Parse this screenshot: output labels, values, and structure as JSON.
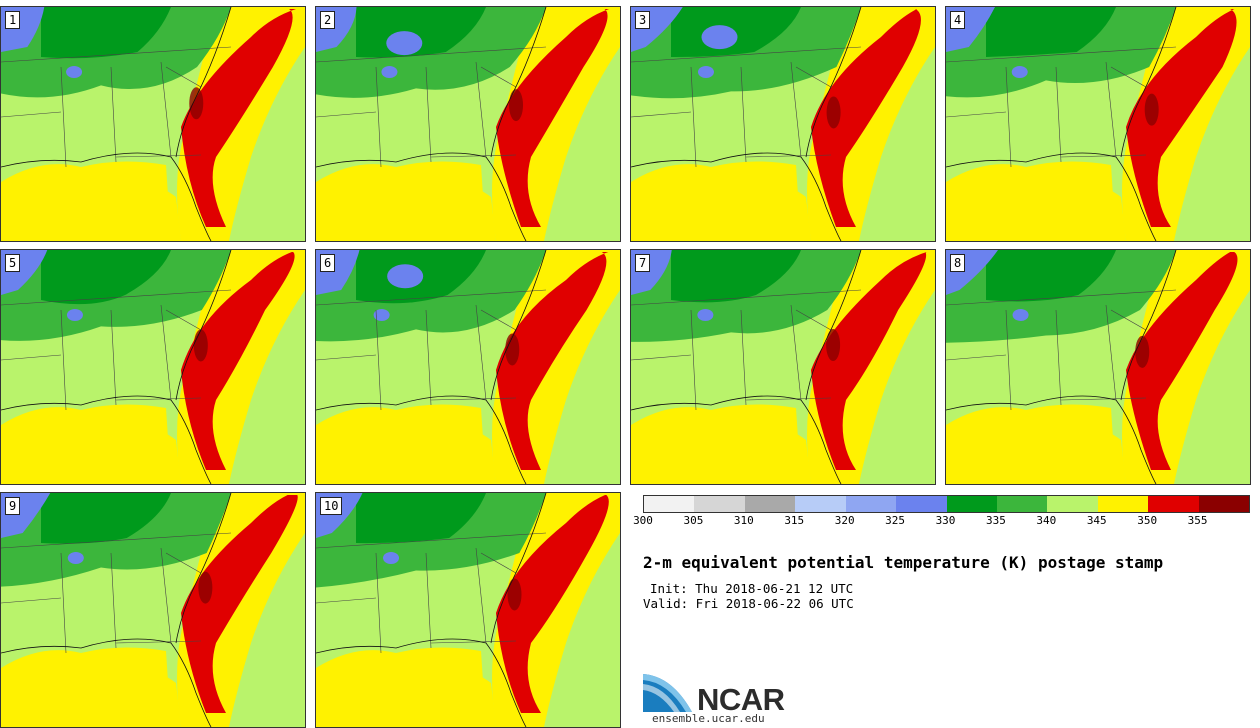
{
  "panels": [
    {
      "label": "1"
    },
    {
      "label": "2"
    },
    {
      "label": "3"
    },
    {
      "label": "4"
    },
    {
      "label": "5"
    },
    {
      "label": "6"
    },
    {
      "label": "7"
    },
    {
      "label": "8"
    },
    {
      "label": "9"
    },
    {
      "label": "10"
    }
  ],
  "colorbar": {
    "colors": [
      "#f2f2f2",
      "#d6d6d6",
      "#a9a9a9",
      "#b7ccf7",
      "#8fa6f2",
      "#6b82ee",
      "#009a1c",
      "#3cb63c",
      "#b9f36b",
      "#fff200",
      "#e00000",
      "#8b0000"
    ],
    "ticks": [
      "300",
      "305",
      "310",
      "315",
      "320",
      "325",
      "330",
      "335",
      "340",
      "345",
      "350",
      "355"
    ]
  },
  "title": "2-m equivalent potential temperature (K) postage stamp",
  "init": "Init: Thu 2018-06-21 12 UTC",
  "valid": "Valid: Fri 2018-06-22 06 UTC",
  "logo": {
    "text": "NCAR",
    "site": "ensemble.ucar.edu"
  }
}
